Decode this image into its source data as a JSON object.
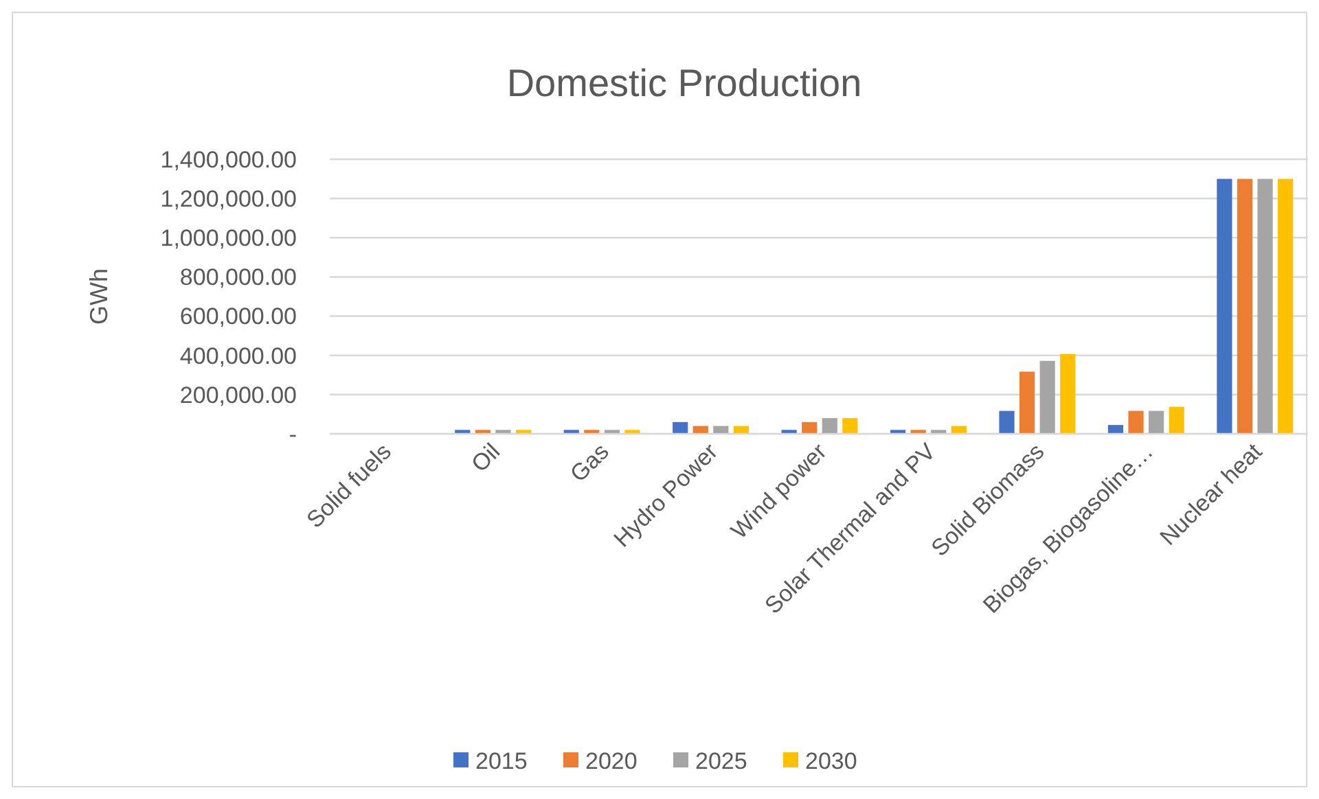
{
  "chart_data": {
    "type": "bar",
    "title": "Domestic Production",
    "ylabel": "GWh",
    "categories": [
      "Solid fuels",
      "Oil",
      "Gas",
      "Hydro Power",
      "Wind power",
      "Solar Thermal and PV",
      "Solid Biomass",
      "Biogas, Biogasoline…",
      "Nuclear heat"
    ],
    "series": [
      {
        "name": "2015",
        "color": "#4472c4",
        "values": [
          0,
          20000,
          20000,
          60000,
          20000,
          20000,
          117000,
          45000,
          1300000
        ]
      },
      {
        "name": "2020",
        "color": "#ed7d31",
        "values": [
          0,
          20000,
          20000,
          40000,
          60000,
          20000,
          317000,
          117000,
          1300000
        ]
      },
      {
        "name": "2025",
        "color": "#a5a5a5",
        "values": [
          0,
          20000,
          20000,
          40000,
          80000,
          20000,
          372000,
          117000,
          1300000
        ]
      },
      {
        "name": "2030",
        "color": "#ffc000",
        "values": [
          0,
          20000,
          20000,
          40000,
          80000,
          40000,
          407000,
          138000,
          1300000
        ]
      }
    ],
    "ylim": [
      0,
      1400000
    ],
    "yticks": [
      {
        "value": 0,
        "label": "-"
      },
      {
        "value": 200000,
        "label": "200,000.00"
      },
      {
        "value": 400000,
        "label": "400,000.00"
      },
      {
        "value": 600000,
        "label": "600,000.00"
      },
      {
        "value": 800000,
        "label": "800,000.00"
      },
      {
        "value": 1000000,
        "label": "1,000,000.00"
      },
      {
        "value": 1200000,
        "label": "1,200,000.00"
      },
      {
        "value": 1400000,
        "label": "1,400,000.00"
      }
    ],
    "grid": "y",
    "legend": "bottom"
  }
}
